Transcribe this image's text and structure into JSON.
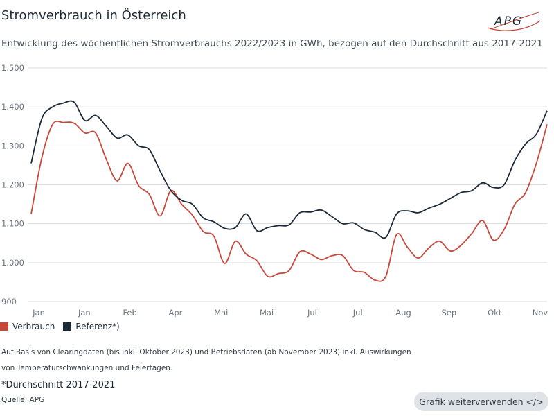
{
  "header": {
    "title": "Stromverbrauch in Österreich",
    "logo_text": "APG",
    "subtitle": "Entwicklung des wöchentlichen Stromverbrauchs 2022/2023 in GWh, bezogen auf den Durchschnitt aus 2017-2021"
  },
  "legend": {
    "items": [
      {
        "label": "Verbrauch",
        "color": "#c9473a"
      },
      {
        "label": "Referenz*)",
        "color": "#1c2a38"
      }
    ]
  },
  "notes": {
    "line1": "Auf Basis von Clearingdaten (bis inkl. Oktober 2023) und Betriebsdaten (ab November 2023) inkl. Auswirkungen",
    "line2": "von Temperaturschwankungen und Feiertagen.",
    "footnote": "*Durchschnitt 2017-2021",
    "source": "Quelle: APG"
  },
  "actions": {
    "reuse_label": "Grafik weiterverwenden </>"
  },
  "chart_data": {
    "type": "line",
    "ylim": [
      900,
      1500
    ],
    "yticks": [
      900,
      1000,
      1100,
      1200,
      1300,
      1400,
      1500
    ],
    "ytick_labels": [
      "900",
      "1.000",
      "1.100",
      "1.200",
      "1.300",
      "1.400",
      "1.500"
    ],
    "x_tick_labels": [
      "Jan",
      "Jan",
      "Feb",
      "Apr",
      "Mai",
      "Mai",
      "Jul",
      "Jul",
      "Aug",
      "Sep",
      "Okt",
      "Nov"
    ],
    "grid": true,
    "series": [
      {
        "name": "Verbrauch",
        "color": "#c9473a",
        "values": [
          1125,
          1270,
          1355,
          1360,
          1358,
          1333,
          1333,
          1265,
          1210,
          1255,
          1198,
          1175,
          1120,
          1185,
          1150,
          1122,
          1080,
          1068,
          998,
          1055,
          1022,
          1005,
          965,
          972,
          980,
          1028,
          1022,
          1008,
          1018,
          1018,
          980,
          975,
          955,
          965,
          1072,
          1040,
          1012,
          1038,
          1055,
          1030,
          1045,
          1075,
          1108,
          1058,
          1085,
          1150,
          1180,
          1255,
          1355
        ]
      },
      {
        "name": "Referenz*)",
        "color": "#1c2a38",
        "values": [
          1255,
          1370,
          1400,
          1410,
          1412,
          1365,
          1378,
          1350,
          1320,
          1328,
          1300,
          1290,
          1235,
          1185,
          1160,
          1150,
          1115,
          1105,
          1088,
          1090,
          1125,
          1082,
          1090,
          1095,
          1097,
          1128,
          1130,
          1135,
          1118,
          1100,
          1102,
          1085,
          1078,
          1065,
          1125,
          1133,
          1128,
          1140,
          1150,
          1165,
          1180,
          1185,
          1205,
          1193,
          1200,
          1262,
          1305,
          1330,
          1390
        ]
      }
    ]
  }
}
